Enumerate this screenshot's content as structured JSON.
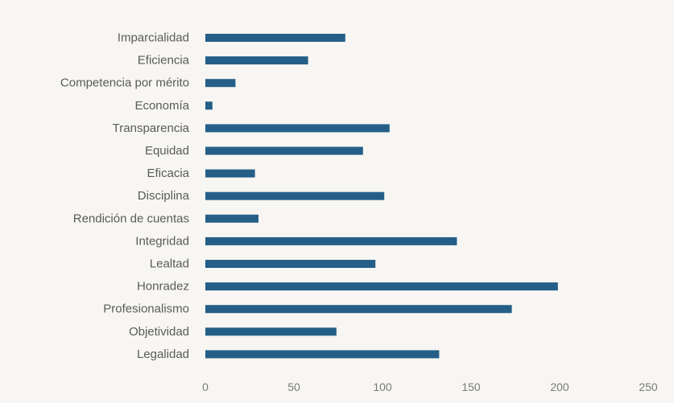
{
  "chart_data": {
    "type": "bar",
    "orientation": "horizontal",
    "categories": [
      "Imparcialidad",
      "Eficiencia",
      "Competencia por mérito",
      "Economía",
      "Transparencia",
      "Equidad",
      "Eficacia",
      "Disciplina",
      "Rendición de cuentas",
      "Integridad",
      "Lealtad",
      "Honradez",
      "Profesionalismo",
      "Objetividad",
      "Legalidad"
    ],
    "values": [
      79,
      58,
      17,
      4,
      104,
      89,
      28,
      101,
      30,
      142,
      96,
      199,
      173,
      74,
      132
    ],
    "xlim": [
      0,
      250
    ],
    "xticks": [
      "0",
      "50",
      "100",
      "150",
      "200",
      "250"
    ],
    "title": "",
    "xlabel": "",
    "ylabel": "",
    "grid": false,
    "legend": "none",
    "colors": {
      "bar": "#255f88",
      "background": "#f7f6f2",
      "label": "#5a5a5a",
      "tick": "#7a7a7a"
    }
  }
}
